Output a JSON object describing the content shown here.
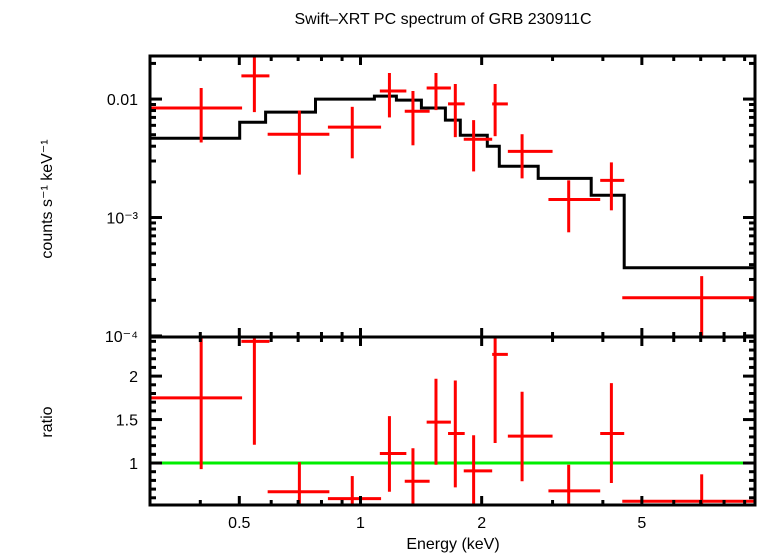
{
  "chart_data": [
    {
      "panel": "spectrum",
      "type": "scatter",
      "title": "Swift–XRT PC spectrum of GRB 230911C",
      "xlabel": "Energy (keV)",
      "ylabel": "counts s⁻¹ keV⁻¹",
      "xscale": "log",
      "yscale": "log",
      "xlim": [
        0.3,
        9.55
      ],
      "ylim": [
        9.8e-05,
        0.0231
      ],
      "yticks": [
        {
          "value": 0.01,
          "label": "0.01"
        },
        {
          "value": 0.001,
          "label": "10⁻³"
        },
        {
          "value": 0.0001,
          "label": "10⁻⁴"
        }
      ],
      "grid": false,
      "series": [
        {
          "name": "data",
          "color": "#ff0000",
          "points": [
            {
              "xlo": 0.3,
              "xhi": 0.508,
              "x": 0.402,
              "y": 0.0084,
              "ylo": 0.0043,
              "yhi": 0.0124
            },
            {
              "xlo": 0.506,
              "xhi": 0.594,
              "x": 0.545,
              "y": 0.0157,
              "ylo": 0.00776,
              "yhi": 0.0236
            },
            {
              "xlo": 0.588,
              "xhi": 0.837,
              "x": 0.705,
              "y": 0.00505,
              "ylo": 0.0023,
              "yhi": 0.008
            },
            {
              "xlo": 0.83,
              "xhi": 1.125,
              "x": 0.954,
              "y": 0.0058,
              "ylo": 0.00316,
              "yhi": 0.0086
            },
            {
              "xlo": 1.117,
              "xhi": 1.3,
              "x": 1.18,
              "y": 0.0117,
              "ylo": 0.007,
              "yhi": 0.0166
            },
            {
              "xlo": 1.288,
              "xhi": 1.485,
              "x": 1.35,
              "y": 0.0079,
              "ylo": 0.00407,
              "yhi": 0.0117
            },
            {
              "xlo": 1.46,
              "xhi": 1.677,
              "x": 1.54,
              "y": 0.0124,
              "ylo": 0.00807,
              "yhi": 0.0166
            },
            {
              "xlo": 1.65,
              "xhi": 1.815,
              "x": 1.72,
              "y": 0.0091,
              "ylo": 0.00477,
              "yhi": 0.0134
            },
            {
              "xlo": 1.805,
              "xhi": 2.124,
              "x": 1.91,
              "y": 0.00458,
              "ylo": 0.00245,
              "yhi": 0.00664
            },
            {
              "xlo": 2.124,
              "xhi": 2.323,
              "x": 2.16,
              "y": 0.0091,
              "ylo": 0.00486,
              "yhi": 0.0134
            },
            {
              "xlo": 2.323,
              "xhi": 3.0,
              "x": 2.52,
              "y": 0.00362,
              "ylo": 0.00214,
              "yhi": 0.00505
            },
            {
              "xlo": 2.93,
              "xhi": 3.94,
              "x": 3.29,
              "y": 0.00142,
              "ylo": 0.00075,
              "yhi": 0.00206
            },
            {
              "xlo": 3.94,
              "xhi": 4.52,
              "x": 4.2,
              "y": 0.00206,
              "ylo": 0.00115,
              "yhi": 0.00292
            },
            {
              "xlo": 4.47,
              "xhi": 9.55,
              "x": 7.04,
              "y": 0.00021,
              "ylo": 9.8e-05,
              "yhi": 0.00032
            }
          ]
        },
        {
          "name": "model",
          "color": "#000000",
          "type": "step",
          "steps": [
            {
              "xlo": 0.3,
              "xhi": 0.501,
              "y": 0.00467
            },
            {
              "xlo": 0.501,
              "xhi": 0.581,
              "y": 0.00638
            },
            {
              "xlo": 0.581,
              "xhi": 0.773,
              "y": 0.00776
            },
            {
              "xlo": 0.773,
              "xhi": 1.083,
              "y": 0.01
            },
            {
              "xlo": 1.083,
              "xhi": 1.228,
              "y": 0.0106
            },
            {
              "xlo": 1.228,
              "xhi": 1.417,
              "y": 0.0098
            },
            {
              "xlo": 1.417,
              "xhi": 1.625,
              "y": 0.0084
            },
            {
              "xlo": 1.625,
              "xhi": 1.77,
              "y": 0.00664
            },
            {
              "xlo": 1.77,
              "xhi": 2.066,
              "y": 0.00495
            },
            {
              "xlo": 2.066,
              "xhi": 2.212,
              "y": 0.004
            },
            {
              "xlo": 2.212,
              "xhi": 2.764,
              "y": 0.00271
            },
            {
              "xlo": 2.764,
              "xhi": 3.742,
              "y": 0.00214
            },
            {
              "xlo": 3.742,
              "xhi": 4.519,
              "y": 0.00154
            },
            {
              "xlo": 4.519,
              "xhi": 9.55,
              "y": 0.000377
            }
          ]
        }
      ]
    },
    {
      "panel": "ratio",
      "type": "scatter",
      "xlabel": "Energy (keV)",
      "ylabel": "ratio",
      "xscale": "log",
      "yscale": "linear",
      "xlim": [
        0.3,
        9.55
      ],
      "ylim": [
        0.517,
        2.45
      ],
      "xticks": [
        {
          "value": 0.5,
          "label": "0.5"
        },
        {
          "value": 1,
          "label": "1"
        },
        {
          "value": 2,
          "label": "2"
        },
        {
          "value": 5,
          "label": "5"
        }
      ],
      "yticks": [
        {
          "value": 1,
          "label": "1"
        },
        {
          "value": 1.5,
          "label": "1.5"
        },
        {
          "value": 2,
          "label": "2"
        }
      ],
      "reference_line": {
        "y": 1,
        "color": "#00ee00"
      },
      "grid": false,
      "series": [
        {
          "name": "ratio",
          "color": "#ff0000",
          "points": [
            {
              "xlo": 0.3,
              "xhi": 0.508,
              "x": 0.402,
              "y": 1.75,
              "ylo": 0.93,
              "yhi": 2.45
            },
            {
              "xlo": 0.506,
              "xhi": 0.594,
              "x": 0.545,
              "y": 2.4,
              "ylo": 1.21,
              "yhi": 2.45
            },
            {
              "xlo": 0.588,
              "xhi": 0.837,
              "x": 0.705,
              "y": 0.67,
              "ylo": 0.517,
              "yhi": 1.01
            },
            {
              "xlo": 0.83,
              "xhi": 1.125,
              "x": 0.954,
              "y": 0.59,
              "ylo": 0.517,
              "yhi": 0.85
            },
            {
              "xlo": 1.117,
              "xhi": 1.3,
              "x": 1.18,
              "y": 1.11,
              "ylo": 0.67,
              "yhi": 1.54
            },
            {
              "xlo": 1.288,
              "xhi": 1.485,
              "x": 1.35,
              "y": 0.79,
              "ylo": 0.517,
              "yhi": 1.17
            },
            {
              "xlo": 1.46,
              "xhi": 1.677,
              "x": 1.54,
              "y": 1.47,
              "ylo": 0.98,
              "yhi": 1.97
            },
            {
              "xlo": 1.65,
              "xhi": 1.815,
              "x": 1.72,
              "y": 1.34,
              "ylo": 0.72,
              "yhi": 1.95
            },
            {
              "xlo": 1.805,
              "xhi": 2.124,
              "x": 1.91,
              "y": 0.91,
              "ylo": 0.517,
              "yhi": 1.32
            },
            {
              "xlo": 2.124,
              "xhi": 2.323,
              "x": 2.16,
              "y": 2.25,
              "ylo": 1.23,
              "yhi": 2.45
            },
            {
              "xlo": 2.323,
              "xhi": 3.0,
              "x": 2.52,
              "y": 1.31,
              "ylo": 0.79,
              "yhi": 1.82
            },
            {
              "xlo": 2.93,
              "xhi": 3.94,
              "x": 3.29,
              "y": 0.68,
              "ylo": 0.517,
              "yhi": 0.98
            },
            {
              "xlo": 3.94,
              "xhi": 4.52,
              "x": 4.2,
              "y": 1.34,
              "ylo": 0.77,
              "yhi": 1.92
            },
            {
              "xlo": 4.47,
              "xhi": 9.55,
              "x": 7.04,
              "y": 0.56,
              "ylo": 0.517,
              "yhi": 0.87
            }
          ]
        }
      ]
    }
  ]
}
